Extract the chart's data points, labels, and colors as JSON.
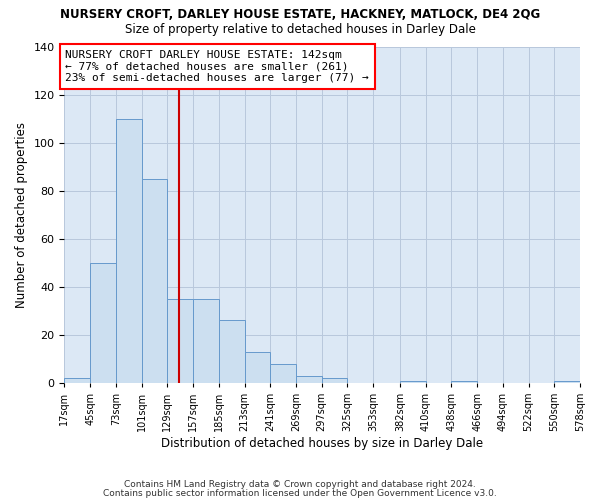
{
  "title": "NURSERY CROFT, DARLEY HOUSE ESTATE, HACKNEY, MATLOCK, DE4 2QG",
  "subtitle": "Size of property relative to detached houses in Darley Dale",
  "xlabel": "Distribution of detached houses by size in Darley Dale",
  "ylabel": "Number of detached properties",
  "bar_color": "#ccdff0",
  "bar_edge_color": "#6699cc",
  "background_color": "#dce8f5",
  "grid_color": "#b8c8dc",
  "annotation_text": "NURSERY CROFT DARLEY HOUSE ESTATE: 142sqm\n← 77% of detached houses are smaller (261)\n23% of semi-detached houses are larger (77) →",
  "reference_line_x": 142,
  "reference_line_color": "#cc0000",
  "bins": [
    17,
    45,
    73,
    101,
    129,
    157,
    185,
    213,
    241,
    269,
    297,
    325,
    353,
    382,
    410,
    438,
    466,
    494,
    522,
    550,
    578
  ],
  "bin_labels": [
    "17sqm",
    "45sqm",
    "73sqm",
    "101sqm",
    "129sqm",
    "157sqm",
    "185sqm",
    "213sqm",
    "241sqm",
    "269sqm",
    "297sqm",
    "325sqm",
    "353sqm",
    "382sqm",
    "410sqm",
    "438sqm",
    "466sqm",
    "494sqm",
    "522sqm",
    "550sqm",
    "578sqm"
  ],
  "bar_heights": [
    2,
    50,
    110,
    85,
    35,
    35,
    26,
    13,
    8,
    3,
    2,
    0,
    0,
    1,
    0,
    1,
    0,
    0,
    0,
    1
  ],
  "ylim": [
    0,
    140
  ],
  "yticks": [
    0,
    20,
    40,
    60,
    80,
    100,
    120,
    140
  ],
  "footer1": "Contains HM Land Registry data © Crown copyright and database right 2024.",
  "footer2": "Contains public sector information licensed under the Open Government Licence v3.0."
}
